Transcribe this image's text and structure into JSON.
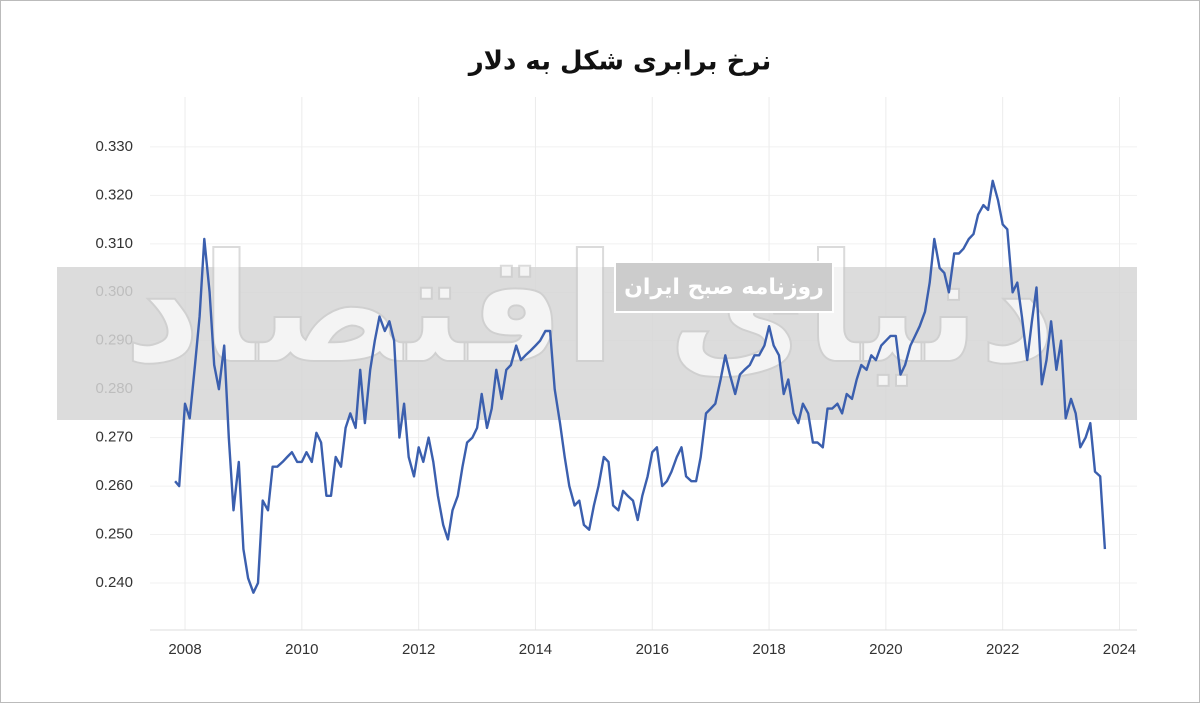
{
  "chart_data": {
    "type": "line",
    "title": "نرخ برابری شکل به دلار",
    "color": "#3b5fae",
    "grid": true,
    "xlim": [
      2007.4,
      2024.3
    ],
    "xticks": [
      2008,
      2010,
      2012,
      2014,
      2016,
      2018,
      2020,
      2022,
      2024
    ],
    "ylim": [
      0.2303,
      0.3403
    ],
    "yticks": [
      {
        "value": 0.24,
        "label": "0.240"
      },
      {
        "value": 0.25,
        "label": "0.250"
      },
      {
        "value": 0.26,
        "label": "0.260"
      },
      {
        "value": 0.27,
        "label": "0.270"
      },
      {
        "value": 0.28,
        "label": "0.280"
      },
      {
        "value": 0.29,
        "label": "0.290"
      },
      {
        "value": 0.3,
        "label": "0.300"
      },
      {
        "value": 0.31,
        "label": "0.310"
      },
      {
        "value": 0.32,
        "label": "0.320"
      },
      {
        "value": 0.33,
        "label": "0.330"
      }
    ],
    "x": [
      2007.83,
      2007.9,
      2008.0,
      2008.08,
      2008.17,
      2008.25,
      2008.33,
      2008.42,
      2008.5,
      2008.58,
      2008.67,
      2008.75,
      2008.83,
      2008.92,
      2009.0,
      2009.08,
      2009.17,
      2009.25,
      2009.33,
      2009.42,
      2009.5,
      2009.58,
      2009.67,
      2009.75,
      2009.83,
      2009.92,
      2010.0,
      2010.08,
      2010.17,
      2010.25,
      2010.33,
      2010.42,
      2010.5,
      2010.58,
      2010.67,
      2010.75,
      2010.83,
      2010.92,
      2011.0,
      2011.08,
      2011.17,
      2011.25,
      2011.33,
      2011.42,
      2011.5,
      2011.58,
      2011.67,
      2011.75,
      2011.83,
      2011.92,
      2012.0,
      2012.08,
      2012.17,
      2012.25,
      2012.33,
      2012.42,
      2012.5,
      2012.58,
      2012.67,
      2012.75,
      2012.83,
      2012.92,
      2013.0,
      2013.08,
      2013.17,
      2013.25,
      2013.33,
      2013.42,
      2013.5,
      2013.58,
      2013.67,
      2013.75,
      2013.83,
      2013.92,
      2014.0,
      2014.08,
      2014.17,
      2014.25,
      2014.33,
      2014.42,
      2014.5,
      2014.58,
      2014.67,
      2014.75,
      2014.83,
      2014.92,
      2015.0,
      2015.08,
      2015.17,
      2015.25,
      2015.33,
      2015.42,
      2015.5,
      2015.58,
      2015.67,
      2015.75,
      2015.83,
      2015.92,
      2016.0,
      2016.08,
      2016.17,
      2016.25,
      2016.33,
      2016.42,
      2016.5,
      2016.58,
      2016.67,
      2016.75,
      2016.83,
      2016.92,
      2017.0,
      2017.08,
      2017.17,
      2017.25,
      2017.33,
      2017.42,
      2017.5,
      2017.58,
      2017.67,
      2017.75,
      2017.83,
      2017.92,
      2018.0,
      2018.08,
      2018.17,
      2018.25,
      2018.33,
      2018.42,
      2018.5,
      2018.58,
      2018.67,
      2018.75,
      2018.83,
      2018.92,
      2019.0,
      2019.08,
      2019.17,
      2019.25,
      2019.33,
      2019.42,
      2019.5,
      2019.58,
      2019.67,
      2019.75,
      2019.83,
      2019.92,
      2020.0,
      2020.08,
      2020.17,
      2020.25,
      2020.33,
      2020.42,
      2020.5,
      2020.58,
      2020.67,
      2020.75,
      2020.83,
      2020.92,
      2021.0,
      2021.08,
      2021.17,
      2021.25,
      2021.33,
      2021.42,
      2021.5,
      2021.58,
      2021.67,
      2021.75,
      2021.83,
      2021.92,
      2022.0,
      2022.08,
      2022.17,
      2022.25,
      2022.33,
      2022.42,
      2022.5,
      2022.58,
      2022.67,
      2022.75,
      2022.83,
      2022.92,
      2023.0,
      2023.08,
      2023.17,
      2023.25,
      2023.33,
      2023.42,
      2023.5,
      2023.58,
      2023.67,
      2023.75
    ],
    "values": [
      0.261,
      0.26,
      0.277,
      0.274,
      0.285,
      0.295,
      0.311,
      0.3,
      0.285,
      0.28,
      0.289,
      0.27,
      0.255,
      0.265,
      0.247,
      0.241,
      0.238,
      0.24,
      0.257,
      0.255,
      0.264,
      0.264,
      0.265,
      0.266,
      0.267,
      0.265,
      0.265,
      0.267,
      0.265,
      0.271,
      0.269,
      0.258,
      0.258,
      0.266,
      0.264,
      0.272,
      0.275,
      0.272,
      0.284,
      0.273,
      0.284,
      0.29,
      0.295,
      0.292,
      0.294,
      0.29,
      0.27,
      0.277,
      0.266,
      0.262,
      0.268,
      0.265,
      0.27,
      0.265,
      0.258,
      0.252,
      0.249,
      0.255,
      0.258,
      0.264,
      0.269,
      0.27,
      0.272,
      0.279,
      0.272,
      0.276,
      0.284,
      0.278,
      0.284,
      0.285,
      0.289,
      0.286,
      0.287,
      0.288,
      0.289,
      0.29,
      0.292,
      0.292,
      0.28,
      0.273,
      0.266,
      0.26,
      0.256,
      0.257,
      0.252,
      0.251,
      0.256,
      0.26,
      0.266,
      0.265,
      0.256,
      0.255,
      0.259,
      0.258,
      0.257,
      0.253,
      0.258,
      0.262,
      0.267,
      0.268,
      0.26,
      0.261,
      0.263,
      0.266,
      0.268,
      0.262,
      0.261,
      0.261,
      0.266,
      0.275,
      0.276,
      0.277,
      0.282,
      0.287,
      0.283,
      0.279,
      0.283,
      0.284,
      0.285,
      0.287,
      0.287,
      0.289,
      0.293,
      0.289,
      0.287,
      0.279,
      0.282,
      0.275,
      0.273,
      0.277,
      0.275,
      0.269,
      0.269,
      0.268,
      0.276,
      0.276,
      0.277,
      0.275,
      0.279,
      0.278,
      0.282,
      0.285,
      0.284,
      0.287,
      0.286,
      0.289,
      0.29,
      0.291,
      0.291,
      0.283,
      0.285,
      0.289,
      0.291,
      0.293,
      0.296,
      0.302,
      0.311,
      0.305,
      0.304,
      0.3,
      0.308,
      0.308,
      0.309,
      0.311,
      0.312,
      0.316,
      0.318,
      0.317,
      0.323,
      0.319,
      0.314,
      0.313,
      0.3,
      0.302,
      0.295,
      0.286,
      0.294,
      0.301,
      0.281,
      0.286,
      0.294,
      0.284,
      0.29,
      0.274,
      0.278,
      0.275,
      0.268,
      0.27,
      0.273,
      0.263,
      0.262,
      0.247
    ]
  },
  "watermark": {
    "logo": "دنیای اقتصاد",
    "tagline": "روزنامه صبح ایران"
  }
}
